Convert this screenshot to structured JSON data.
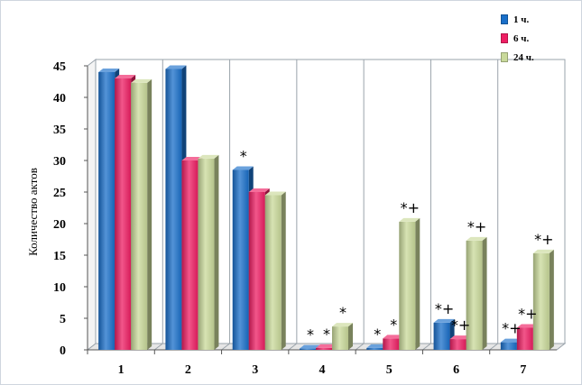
{
  "chart_data": {
    "type": "bar",
    "ylabel": "Количество актов",
    "xlabel": "",
    "categories": [
      "1",
      "2",
      "3",
      "4",
      "5",
      "6",
      "7"
    ],
    "ylim": [
      0,
      45
    ],
    "yticks": [
      0,
      5,
      10,
      15,
      20,
      25,
      30,
      35,
      40,
      45
    ],
    "grid": "vertical",
    "legend_position": "top-right",
    "series": [
      {
        "name": "1 ч.",
        "color": "#1a6fc9",
        "values": [
          44,
          44.5,
          28.5,
          0.2,
          0.3,
          4.3,
          1.2
        ]
      },
      {
        "name": "6 ч.",
        "color": "#ee1e63",
        "values": [
          43,
          30,
          25,
          0.3,
          1.8,
          1.7,
          3.5
        ]
      },
      {
        "name": "24 ч.",
        "color": "#c9d99a",
        "values": [
          42.3,
          30.3,
          24.5,
          3.7,
          20.3,
          17.3,
          15.3
        ]
      }
    ],
    "annotations": [
      {
        "category": "3",
        "series": "1 ч.",
        "text": "*"
      },
      {
        "category": "4",
        "series": "1 ч.",
        "text": "*"
      },
      {
        "category": "4",
        "series": "6 ч.",
        "text": "*"
      },
      {
        "category": "4",
        "series": "24 ч.",
        "text": "*"
      },
      {
        "category": "5",
        "series": "1 ч.",
        "text": "*"
      },
      {
        "category": "5",
        "series": "6 ч.",
        "text": "*"
      },
      {
        "category": "5",
        "series": "24 ч.",
        "text": "*+"
      },
      {
        "category": "6",
        "series": "1 ч.",
        "text": "*+"
      },
      {
        "category": "6",
        "series": "6 ч.",
        "text": "*+"
      },
      {
        "category": "6",
        "series": "24 ч.",
        "text": "*+"
      },
      {
        "category": "7",
        "series": "1 ч.",
        "text": "*+"
      },
      {
        "category": "7",
        "series": "6 ч.",
        "text": "*+"
      },
      {
        "category": "7",
        "series": "24 ч.",
        "text": "*+"
      }
    ]
  }
}
